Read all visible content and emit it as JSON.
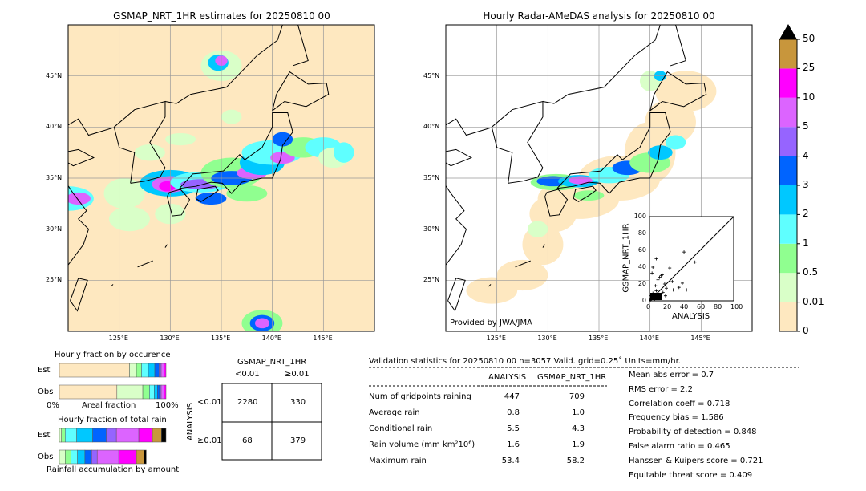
{
  "left_map": {
    "title": "GSMAP_NRT_1HR estimates for 20250810 00"
  },
  "right_map": {
    "title": "Hourly Radar-AMeDAS analysis for 20250810 00",
    "credit": "Provided by JWA/JMA"
  },
  "lon_ticks": [
    "125°E",
    "130°E",
    "135°E",
    "140°E",
    "145°E"
  ],
  "lat_ticks": [
    "45°N",
    "40°N",
    "35°N",
    "30°N",
    "25°N"
  ],
  "colorbar": {
    "labels": [
      "50",
      "25",
      "10",
      "5",
      "4",
      "3",
      "2",
      "1",
      "0.5",
      "0.01",
      "0"
    ],
    "colors": [
      "#fee8c0",
      "#d9ffc8",
      "#90ff90",
      "#5fffff",
      "#00c8ff",
      "#0064ff",
      "#9664ff",
      "#dc64ff",
      "#ff00ff",
      "#c8963c"
    ],
    "extend_color": "#000000"
  },
  "chart_data": [
    {
      "type": "scatter",
      "xlabel": "ANALYSIS",
      "ylabel": "GSMAP_NRT_1HR",
      "xlim": [
        0,
        100
      ],
      "ylim": [
        0,
        100
      ],
      "ticks": [
        "0",
        "20",
        "40",
        "60",
        "80",
        "100"
      ],
      "points": [
        [
          8,
          50
        ],
        [
          4,
          40
        ],
        [
          3,
          33
        ],
        [
          15,
          31
        ],
        [
          14,
          30
        ],
        [
          12,
          28
        ],
        [
          10,
          25
        ],
        [
          24,
          39
        ],
        [
          41,
          58
        ],
        [
          54,
          46
        ],
        [
          39,
          21
        ],
        [
          35,
          16
        ],
        [
          44,
          13
        ],
        [
          28,
          13
        ],
        [
          27,
          23
        ],
        [
          18,
          20
        ],
        [
          20,
          15
        ],
        [
          7,
          18
        ],
        [
          16,
          10
        ],
        [
          9,
          8
        ],
        [
          5,
          5
        ],
        [
          3,
          3
        ],
        [
          6,
          2
        ],
        [
          2,
          6
        ],
        [
          11,
          4
        ],
        [
          13,
          7
        ],
        [
          8,
          12
        ],
        [
          4,
          9
        ],
        [
          1,
          1
        ],
        [
          19,
          6
        ]
      ]
    },
    {
      "type": "bar",
      "title": "Hourly fraction by occurence",
      "xlabel": "Areal fraction",
      "x_ticks": [
        "0%",
        "100%"
      ],
      "rows": [
        "Est",
        "Obs"
      ],
      "Est": [
        0.6575,
        0.065,
        0.0475,
        0.065,
        0.06,
        0.04,
        0.02,
        0.0275,
        0.0175
      ],
      "Obs": [
        0.54,
        0.2425,
        0.0625,
        0.045,
        0.03,
        0.02,
        0.015,
        0.0275,
        0.0175
      ]
    },
    {
      "type": "bar",
      "title": "Hourly fraction of total rain",
      "xlabel": "Rainfall accumulation by amount",
      "rows": [
        "Est",
        "Obs"
      ],
      "Est": [
        0.02,
        0.035,
        0.1075,
        0.15,
        0.1275,
        0.095,
        0.21,
        0.1275,
        0.085,
        0.0425
      ],
      "Obs": [
        0.055,
        0.0525,
        0.0625,
        0.07,
        0.0625,
        0.0525,
        0.2025,
        0.165,
        0.0725,
        0.02
      ]
    }
  ],
  "contingency": {
    "col_title": "GSMAP_NRT_1HR",
    "row_title": "ANALYSIS",
    "cols": [
      "<0.01",
      "≥0.01"
    ],
    "rows": [
      "<0.01",
      "≥0.01"
    ],
    "cells": [
      [
        "2280",
        "330"
      ],
      [
        "68",
        "379"
      ]
    ]
  },
  "stats": {
    "header": "Validation statistics for 20250810 00  n=3057 Valid. grid=0.25˚ Units=mm/hr.",
    "col1": "ANALYSIS",
    "col2": "GSMAP_NRT_1HR",
    "rows": [
      {
        "label": "Num of gridpoints raining",
        "a": "447",
        "g": "709"
      },
      {
        "label": "Average rain",
        "a": "0.8",
        "g": "1.0"
      },
      {
        "label": "Conditional rain",
        "a": "5.5",
        "g": "4.3"
      },
      {
        "label": "Rain volume (mm km²10⁶)",
        "a": "1.6",
        "g": "1.9"
      },
      {
        "label": "Maximum rain",
        "a": "53.4",
        "g": "58.2"
      }
    ],
    "scores": [
      "Mean abs error =    0.7",
      "RMS error =    2.2",
      "Correlation coeff =  0.718",
      "Frequency bias =  1.586",
      "Probability of detection =  0.848",
      "False alarm ratio =  0.465",
      "Hanssen & Kuipers score =  0.721",
      "Equitable threat score =  0.409"
    ]
  }
}
